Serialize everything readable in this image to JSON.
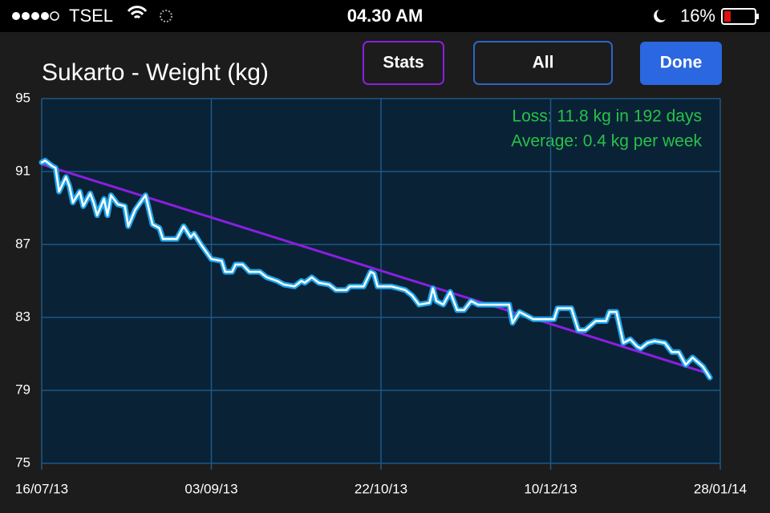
{
  "status_bar": {
    "carrier": "TSEL",
    "time": "04.30 AM",
    "battery": "16%"
  },
  "buttons": [
    "Stats",
    "All",
    "Done"
  ],
  "chart_data": {
    "type": "line",
    "title": "Sukarto - Weight (kg)",
    "annotations": [
      "Loss: 11.8 kg in 192 days",
      "Average: 0.4 kg per week"
    ],
    "x": [
      "16/07/13",
      "17/07/13",
      "19/07/13",
      "20/07/13",
      "21/07/13",
      "23/07/13",
      "24/07/13",
      "25/07/13",
      "27/07/13",
      "28/07/13",
      "30/07/13",
      "31/07/13",
      "01/08/13",
      "03/08/13",
      "04/08/13",
      "05/08/13",
      "07/08/13",
      "09/08/13",
      "10/08/13",
      "12/08/13",
      "15/08/13",
      "17/08/13",
      "19/08/13",
      "20/08/13",
      "24/08/13",
      "26/08/13",
      "28/08/13",
      "29/08/13",
      "31/08/13",
      "03/09/13",
      "06/09/13",
      "07/09/13",
      "09/09/13",
      "10/09/13",
      "12/09/13",
      "14/09/13",
      "17/09/13",
      "19/09/13",
      "22/09/13",
      "24/09/13",
      "27/09/13",
      "29/09/13",
      "30/09/13",
      "02/10/13",
      "04/10/13",
      "07/10/13",
      "09/10/13",
      "12/10/13",
      "13/10/13",
      "17/10/13",
      "19/10/13",
      "20/10/13",
      "21/10/13",
      "25/10/13",
      "29/10/13",
      "31/10/13",
      "02/11/13",
      "05/11/13",
      "06/11/13",
      "07/11/13",
      "09/11/13",
      "11/11/13",
      "13/11/13",
      "15/11/13",
      "17/11/13",
      "19/11/13",
      "28/11/13",
      "29/11/13",
      "01/12/13",
      "02/12/13",
      "05/12/13",
      "11/12/13",
      "12/12/13",
      "16/12/13",
      "18/12/13",
      "20/12/13",
      "23/12/13",
      "26/12/13",
      "27/12/13",
      "29/12/13",
      "31/12/13",
      "02/01/14",
      "04/01/14",
      "05/01/14",
      "07/01/14",
      "09/01/14",
      "12/01/14",
      "14/01/14",
      "16/01/14",
      "18/01/14",
      "20/01/14",
      "23/01/14",
      "25/01/14"
    ],
    "series": [
      {
        "color": "#1aa3ea",
        "values": [
          91.5,
          91.6,
          91.3,
          91.2,
          89.9,
          90.7,
          90.2,
          89.3,
          89.9,
          89.1,
          89.8,
          89.3,
          88.6,
          89.5,
          88.6,
          89.7,
          89.2,
          89.1,
          88.0,
          88.9,
          89.7,
          88.1,
          87.9,
          87.3,
          87.3,
          88.0,
          87.4,
          87.6,
          87.0,
          86.2,
          86.1,
          85.5,
          85.5,
          85.9,
          85.9,
          85.5,
          85.5,
          85.2,
          85.0,
          84.8,
          84.7,
          85.0,
          84.9,
          85.2,
          84.9,
          84.8,
          84.5,
          84.5,
          84.7,
          84.7,
          85.5,
          85.4,
          84.7,
          84.7,
          84.5,
          84.2,
          83.7,
          83.8,
          84.6,
          83.9,
          83.7,
          84.4,
          83.4,
          83.4,
          83.9,
          83.7,
          83.7,
          82.7,
          83.3,
          83.2,
          82.9,
          82.9,
          83.5,
          83.5,
          82.3,
          82.3,
          82.8,
          82.8,
          83.3,
          83.3,
          81.6,
          81.8,
          81.4,
          81.3,
          81.6,
          81.7,
          81.6,
          81.1,
          81.1,
          80.4,
          80.8,
          80.3,
          79.7
        ]
      }
    ],
    "trend": {
      "color": "#8a1fe0",
      "x": [
        "16/07/13",
        "25/01/14"
      ],
      "values": [
        91.4,
        79.9
      ]
    },
    "xlim": [
      "16/07/13",
      "28/01/14"
    ],
    "xticks": [
      "16/07/13",
      "03/09/13",
      "22/10/13",
      "10/12/13",
      "28/01/14"
    ],
    "ylim": [
      75,
      95
    ],
    "yticks": [
      75,
      79,
      83,
      87,
      91,
      95
    ],
    "grid": true
  }
}
